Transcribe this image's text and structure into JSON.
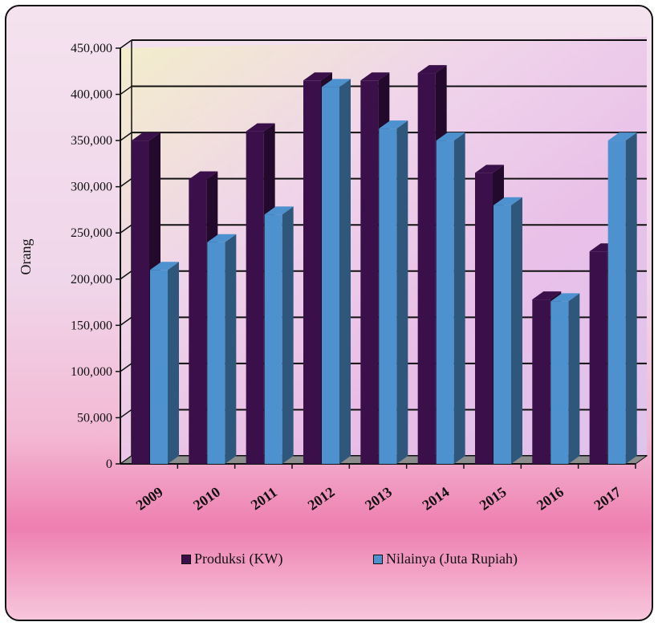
{
  "chart_data": {
    "type": "bar",
    "title": "",
    "xlabel": "",
    "ylabel": "Orang",
    "ylim": [
      0,
      450000
    ],
    "yticks": [
      0,
      50000,
      100000,
      150000,
      200000,
      250000,
      300000,
      350000,
      400000,
      450000
    ],
    "ytick_labels": [
      "0",
      "50,000",
      "100,000",
      "150,000",
      "200,000",
      "250,000",
      "300,000",
      "350,000",
      "400,000",
      "450,000"
    ],
    "categories": [
      "2009",
      "2010",
      "2011",
      "2012",
      "2013",
      "2014",
      "2015",
      "2016",
      "2017"
    ],
    "series": [
      {
        "name": "Produksi (KW)",
        "color": "#3a0f4a",
        "values": [
          350000,
          308000,
          360000,
          415000,
          415000,
          423000,
          315000,
          178000,
          230000
        ]
      },
      {
        "name": "Nilainya (Juta Rupiah)",
        "color": "#4e91cf",
        "values": [
          210000,
          240000,
          270000,
          408000,
          363000,
          350000,
          280000,
          176000,
          350000
        ]
      }
    ],
    "grid": true,
    "legend_position": "bottom"
  }
}
